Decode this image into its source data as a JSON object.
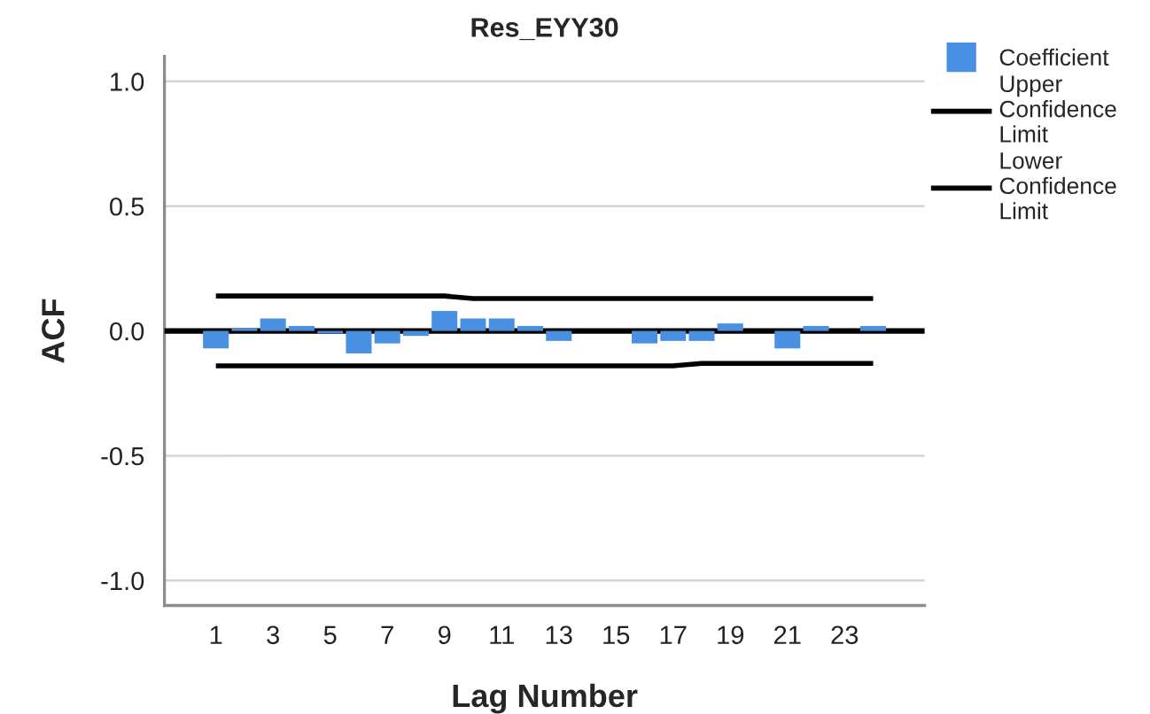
{
  "chart_data": {
    "type": "bar",
    "title": "Res_EYY30",
    "xlabel": "Lag Number",
    "ylabel": "ACF",
    "x": [
      1,
      2,
      3,
      4,
      5,
      6,
      7,
      8,
      9,
      10,
      11,
      12,
      13,
      14,
      15,
      16,
      17,
      18,
      19,
      20,
      21,
      22,
      23,
      24
    ],
    "xlim": [
      -0.8,
      25.8
    ],
    "xticks": [
      1,
      3,
      5,
      7,
      9,
      11,
      13,
      15,
      17,
      19,
      21,
      23
    ],
    "ylim": [
      -1.1,
      1.1
    ],
    "yticks": [
      {
        "value": -1.0,
        "label": "-1.0"
      },
      -0.5,
      {
        "value": 0,
        "label": "0.0"
      },
      0.5,
      {
        "value": 1.0,
        "label": "1.0"
      }
    ],
    "series": [
      {
        "name": "Coefficient",
        "color": "#4a90e2",
        "values": [
          -0.07,
          0.01,
          0.05,
          0.02,
          -0.01,
          -0.09,
          -0.05,
          -0.02,
          0.08,
          0.05,
          0.05,
          0.02,
          -0.04,
          null,
          null,
          -0.05,
          -0.04,
          -0.04,
          0.03,
          null,
          -0.07,
          0.02,
          null,
          0.02
        ]
      },
      {
        "name": "Upper Confidence Limit",
        "type": "line",
        "color": "#000000",
        "values": [
          0.14,
          0.14,
          0.14,
          0.14,
          0.14,
          0.14,
          0.14,
          0.14,
          0.14,
          0.13,
          0.13,
          0.13,
          0.13,
          0.13,
          0.13,
          0.13,
          0.13,
          0.13,
          0.13,
          0.13,
          0.13,
          0.13,
          0.13,
          0.13
        ]
      },
      {
        "name": "Lower Confidence Limit",
        "type": "line",
        "color": "#000000",
        "values": [
          -0.14,
          -0.14,
          -0.14,
          -0.14,
          -0.14,
          -0.14,
          -0.14,
          -0.14,
          -0.14,
          -0.14,
          -0.14,
          -0.14,
          -0.14,
          -0.14,
          -0.14,
          -0.14,
          -0.14,
          -0.13,
          -0.13,
          -0.13,
          -0.13,
          -0.13,
          -0.13,
          -0.13
        ]
      }
    ],
    "ref_lines": [
      {
        "axis": "y",
        "value": 0,
        "color": "#000000"
      }
    ],
    "grid": "y",
    "legend": "top right"
  }
}
